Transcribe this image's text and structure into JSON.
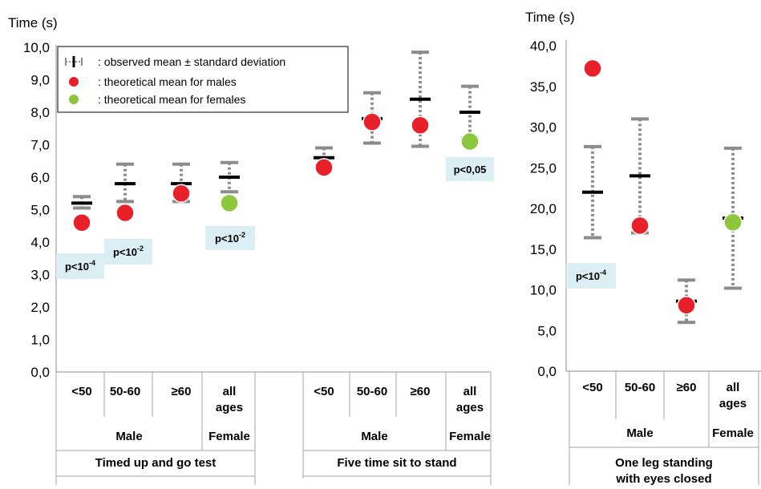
{
  "chart_data": [
    {
      "type": "scatter",
      "ylabel": "Time (s)",
      "ylim": [
        0,
        10
      ],
      "yticks": [
        "0,0",
        "1,0",
        "2,0",
        "3,0",
        "4,0",
        "5,0",
        "6,0",
        "7,0",
        "8,0",
        "9,0",
        "10,0"
      ],
      "legend": {
        "placement": "top-center",
        "observed": ": observed mean ± standard deviation",
        "male": ": theoretical mean for males",
        "female": ": theoretical mean for females"
      },
      "groups": [
        {
          "test": "Timed up and go test",
          "male_label": "Male",
          "female_label": "Female",
          "categories": [
            {
              "label": "<50",
              "sex": "male",
              "mean": 5.2,
              "low": 5.05,
              "high": 5.4,
              "theoretical": 4.6
            },
            {
              "label": "50-60",
              "sex": "male",
              "mean": 5.8,
              "low": 5.25,
              "high": 6.4,
              "theoretical": 4.9
            },
            {
              "label": "≥60",
              "sex": "male",
              "mean": 5.8,
              "low": 5.25,
              "high": 6.4,
              "theoretical": 5.5
            },
            {
              "label": "all ages",
              "sex": "female",
              "mean": 6.0,
              "low": 5.55,
              "high": 6.45,
              "theoretical": 5.2
            }
          ],
          "pvalues": [
            {
              "base": "p<10",
              "exp": "-4",
              "cat": 0
            },
            {
              "base": "p<10",
              "exp": "-2",
              "cat": 1
            },
            {
              "base": "p<10",
              "exp": "-2",
              "cat": 3
            }
          ]
        },
        {
          "test": "Five time sit to stand",
          "male_label": "Male",
          "female_label": "Female",
          "categories": [
            {
              "label": "<50",
              "sex": "male",
              "mean": 6.6,
              "low": 6.35,
              "high": 6.9,
              "theoretical": 6.3
            },
            {
              "label": "50-60",
              "sex": "male",
              "mean": 7.8,
              "low": 7.05,
              "high": 8.6,
              "theoretical": 7.7
            },
            {
              "label": "≥60",
              "sex": "male",
              "mean": 8.4,
              "low": 6.95,
              "high": 9.85,
              "theoretical": 7.6
            },
            {
              "label": "all ages",
              "sex": "female",
              "mean": 8.0,
              "low": 7.2,
              "high": 8.8,
              "theoretical": 7.1
            }
          ],
          "pvalues": [
            {
              "base": "p<0,05",
              "exp": "",
              "cat": 3
            }
          ]
        }
      ]
    },
    {
      "type": "scatter",
      "ylabel": "Time (s)",
      "ylim": [
        0,
        40
      ],
      "yticks": [
        "0,0",
        "5,0",
        "10,0",
        "15,0",
        "20,0",
        "25,0",
        "30,0",
        "35,0",
        "40,0"
      ],
      "groups": [
        {
          "test": "One leg standing with eyes closed",
          "male_label": "Male",
          "female_label": "Female",
          "categories": [
            {
              "label": "<50",
              "sex": "male",
              "mean": 22.0,
              "low": 16.4,
              "high": 27.6,
              "theoretical": 37.2
            },
            {
              "label": "50-60",
              "sex": "male",
              "mean": 24.0,
              "low": 17.0,
              "high": 31.0,
              "theoretical": 17.9
            },
            {
              "label": "≥60",
              "sex": "male",
              "mean": 8.6,
              "low": 6.0,
              "high": 11.2,
              "theoretical": 8.1
            },
            {
              "label": "all ages",
              "sex": "female",
              "mean": 18.8,
              "low": 10.2,
              "high": 27.4,
              "theoretical": 18.3
            }
          ],
          "pvalues": [
            {
              "base": "p<10",
              "exp": "-4",
              "cat": 0
            }
          ]
        }
      ]
    }
  ],
  "colors": {
    "male": "#e8202a",
    "female": "#8dc63f",
    "whisker": "#8c8c8c",
    "pbox": "#dbeef4"
  }
}
